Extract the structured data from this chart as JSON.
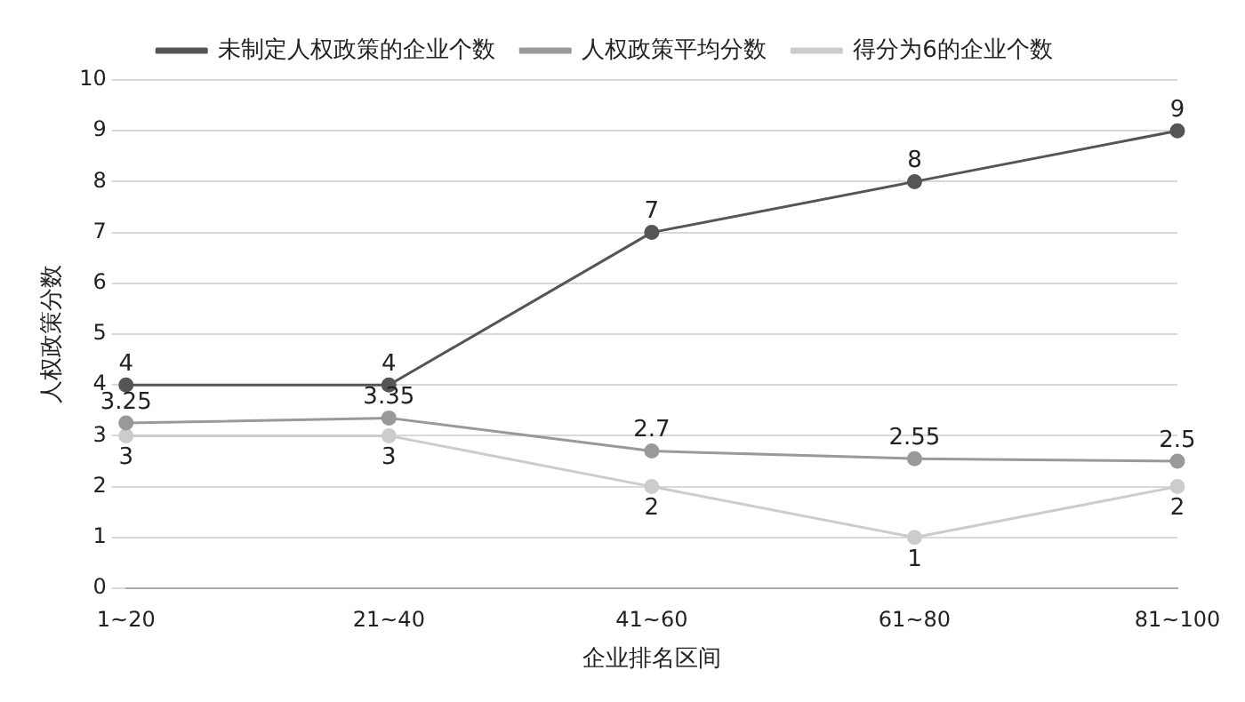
{
  "chart_data": {
    "type": "line",
    "xlabel": "企业排名区间",
    "ylabel": "人权政策分数",
    "categories": [
      "1~20",
      "21~40",
      "41~60",
      "61~80",
      "81~100"
    ],
    "series": [
      {
        "name": "未制定人权政策的企业个数",
        "color": "#555555",
        "values": [
          4,
          4,
          7,
          8,
          9
        ]
      },
      {
        "name": "人权政策平均分数",
        "color": "#999999",
        "values": [
          3.25,
          3.35,
          2.7,
          2.55,
          2.5
        ]
      },
      {
        "name": "得分为6的企业个数",
        "color": "#cccccc",
        "values": [
          3,
          3,
          2,
          1,
          2
        ]
      }
    ],
    "ylim": [
      0,
      10
    ],
    "yticks": [
      0,
      1,
      2,
      3,
      4,
      5,
      6,
      7,
      8,
      9,
      10
    ],
    "grid": "y",
    "legend": "top",
    "marker": "circle",
    "line_style": "solid",
    "data_labels": true
  }
}
